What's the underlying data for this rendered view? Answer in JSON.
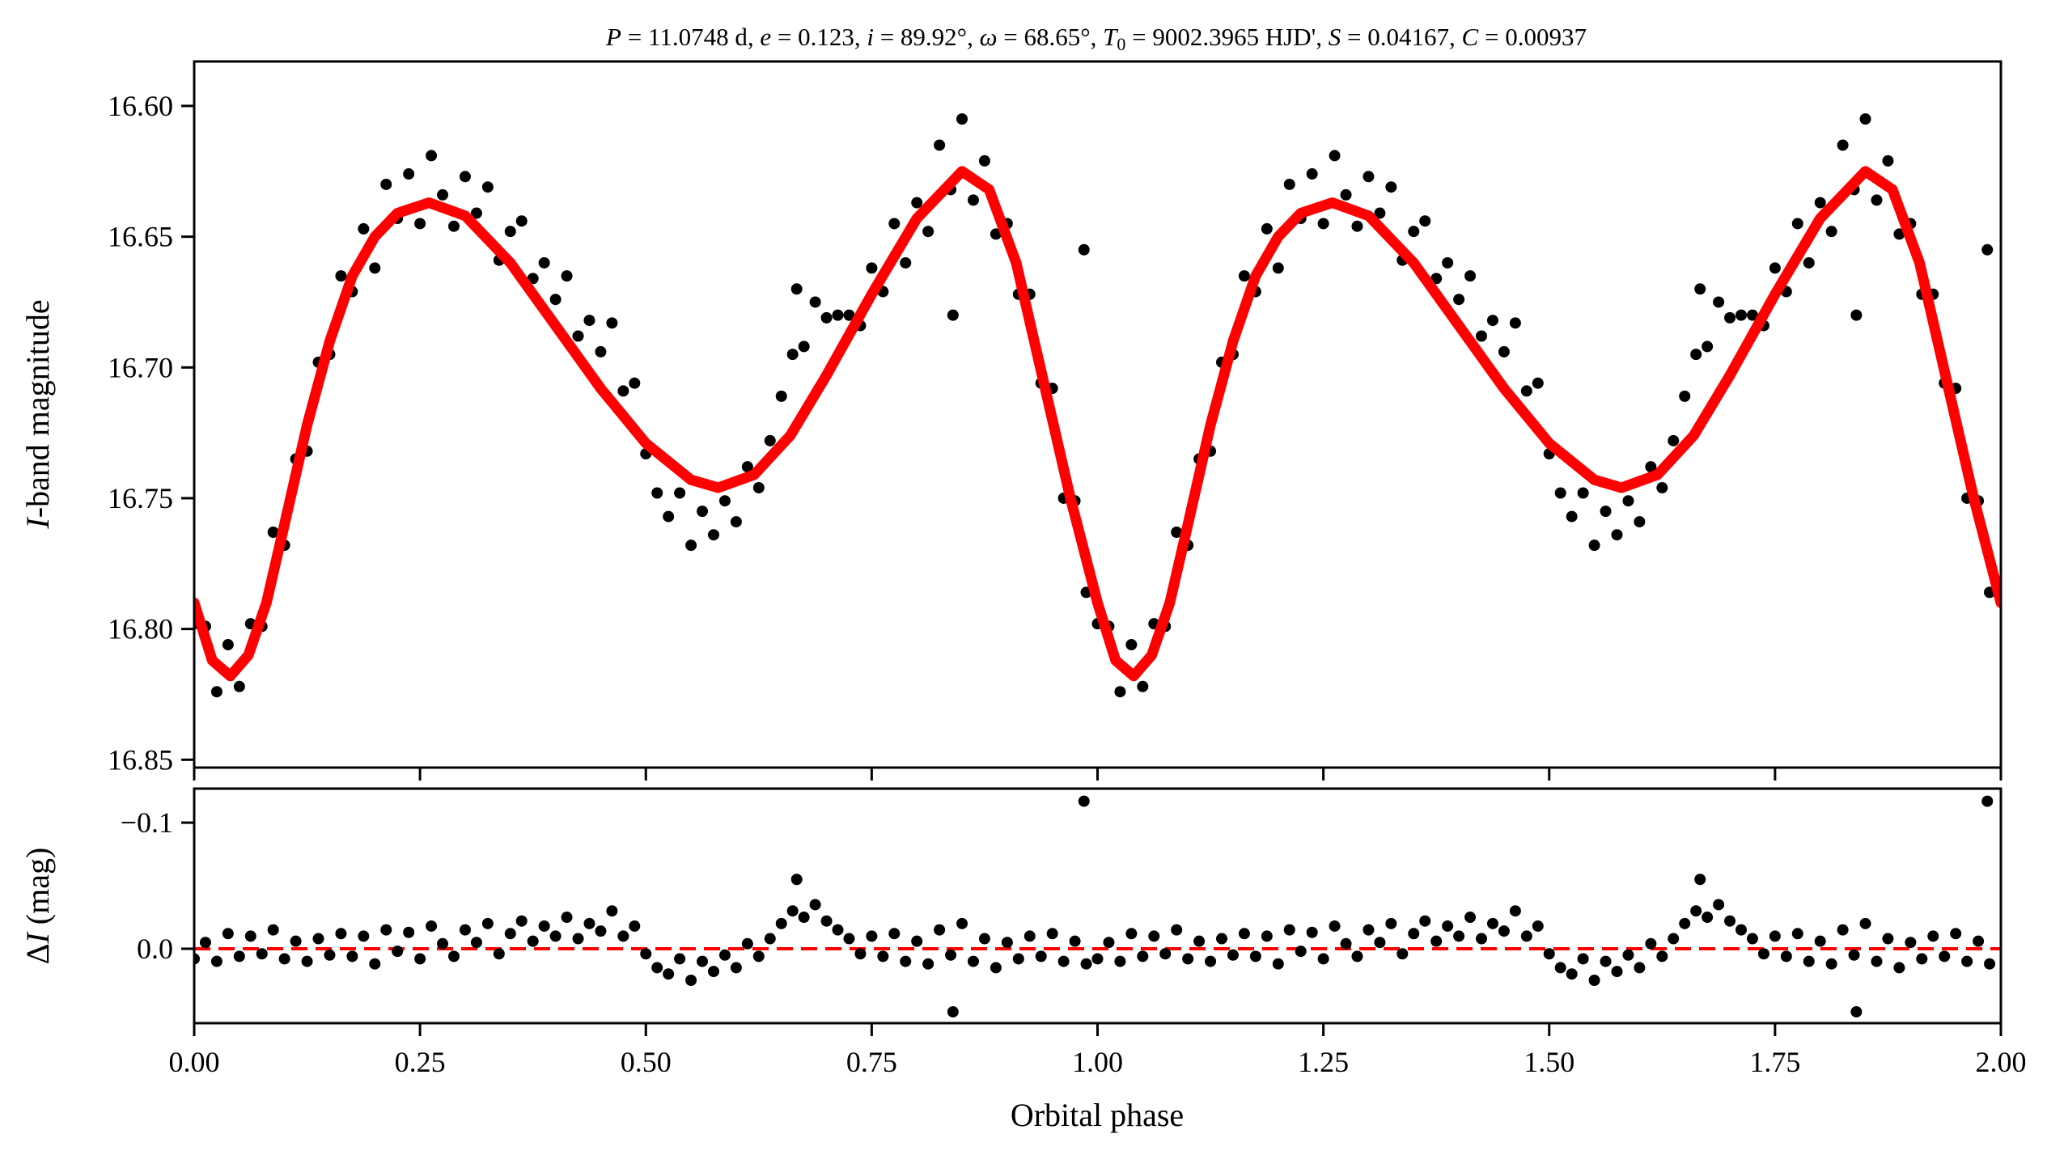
{
  "chart_data": [
    {
      "type": "scatter",
      "panel": "upper",
      "title": "P = 11.0748 d, e = 0.123, i = 89.92°, ω = 68.65°, T0 = 9002.3965 HJD', S = 0.04167, C = 0.00937",
      "title_parts": {
        "P": "11.0748 d",
        "e": "0.123",
        "i": "89.92°",
        "omega": "68.65°",
        "T0": "9002.3965 HJD'",
        "S": "0.04167",
        "C": "0.00937"
      },
      "xlabel": "",
      "ylabel": "I-band magnitude",
      "ylabel_italic_part": "I",
      "ylabel_rest": "-band magnitude",
      "xlim": [
        0,
        2
      ],
      "ylim": [
        16.853,
        16.583
      ],
      "y_inverted": true,
      "yticks": [
        "16.60",
        "16.65",
        "16.70",
        "16.75",
        "16.80",
        "16.85"
      ],
      "ytick_values": [
        16.6,
        16.65,
        16.7,
        16.75,
        16.8,
        16.85
      ],
      "xtick_values": [
        0,
        0.25,
        0.5,
        0.75,
        1.0,
        1.25,
        1.5,
        1.75,
        2.0
      ],
      "phases_shown": "data repeated for phase 0–1 and 1–2",
      "points_color": "#000000",
      "model_color": "#ff0000",
      "model_curve": [
        [
          0.0,
          16.79
        ],
        [
          0.02,
          16.812
        ],
        [
          0.04,
          16.818
        ],
        [
          0.06,
          16.81
        ],
        [
          0.08,
          16.79
        ],
        [
          0.1,
          16.76
        ],
        [
          0.125,
          16.722
        ],
        [
          0.15,
          16.69
        ],
        [
          0.175,
          16.665
        ],
        [
          0.2,
          16.65
        ],
        [
          0.225,
          16.641
        ],
        [
          0.26,
          16.637
        ],
        [
          0.3,
          16.642
        ],
        [
          0.35,
          16.66
        ],
        [
          0.4,
          16.684
        ],
        [
          0.45,
          16.708
        ],
        [
          0.5,
          16.729
        ],
        [
          0.55,
          16.743
        ],
        [
          0.58,
          16.746
        ],
        [
          0.62,
          16.741
        ],
        [
          0.66,
          16.726
        ],
        [
          0.7,
          16.703
        ],
        [
          0.75,
          16.672
        ],
        [
          0.8,
          16.643
        ],
        [
          0.85,
          16.625
        ],
        [
          0.88,
          16.632
        ],
        [
          0.91,
          16.66
        ],
        [
          0.94,
          16.705
        ],
        [
          0.97,
          16.75
        ],
        [
          1.0,
          16.79
        ]
      ],
      "points": [
        [
          0.0,
          16.798
        ],
        [
          0.0125,
          16.799
        ],
        [
          0.025,
          16.824
        ],
        [
          0.0375,
          16.806
        ],
        [
          0.05,
          16.822
        ],
        [
          0.0625,
          16.798
        ],
        [
          0.075,
          16.799
        ],
        [
          0.0875,
          16.763
        ],
        [
          0.1,
          16.768
        ],
        [
          0.1125,
          16.735
        ],
        [
          0.125,
          16.732
        ],
        [
          0.1375,
          16.698
        ],
        [
          0.15,
          16.695
        ],
        [
          0.1625,
          16.665
        ],
        [
          0.175,
          16.671
        ],
        [
          0.1875,
          16.647
        ],
        [
          0.2,
          16.662
        ],
        [
          0.2125,
          16.63
        ],
        [
          0.225,
          16.643
        ],
        [
          0.2375,
          16.626
        ],
        [
          0.25,
          16.645
        ],
        [
          0.2625,
          16.619
        ],
        [
          0.275,
          16.634
        ],
        [
          0.2875,
          16.646
        ],
        [
          0.3,
          16.627
        ],
        [
          0.3125,
          16.641
        ],
        [
          0.325,
          16.631
        ],
        [
          0.3375,
          16.659
        ],
        [
          0.35,
          16.648
        ],
        [
          0.3625,
          16.644
        ],
        [
          0.375,
          16.666
        ],
        [
          0.3875,
          16.66
        ],
        [
          0.4,
          16.674
        ],
        [
          0.4125,
          16.665
        ],
        [
          0.425,
          16.688
        ],
        [
          0.4375,
          16.682
        ],
        [
          0.45,
          16.694
        ],
        [
          0.4625,
          16.683
        ],
        [
          0.475,
          16.709
        ],
        [
          0.4875,
          16.706
        ],
        [
          0.5,
          16.733
        ],
        [
          0.5125,
          16.748
        ],
        [
          0.525,
          16.757
        ],
        [
          0.5375,
          16.748
        ],
        [
          0.55,
          16.768
        ],
        [
          0.5625,
          16.755
        ],
        [
          0.575,
          16.764
        ],
        [
          0.5875,
          16.751
        ],
        [
          0.6,
          16.759
        ],
        [
          0.6125,
          16.738
        ],
        [
          0.625,
          16.746
        ],
        [
          0.6375,
          16.728
        ],
        [
          0.65,
          16.711
        ],
        [
          0.6625,
          16.695
        ],
        [
          0.675,
          16.692
        ],
        [
          0.6875,
          16.675
        ],
        [
          0.7,
          16.681
        ],
        [
          0.7125,
          16.68
        ],
        [
          0.725,
          16.68
        ],
        [
          0.7375,
          16.684
        ],
        [
          0.75,
          16.662
        ],
        [
          0.7625,
          16.671
        ],
        [
          0.775,
          16.645
        ],
        [
          0.7875,
          16.66
        ],
        [
          0.8,
          16.637
        ],
        [
          0.8125,
          16.648
        ],
        [
          0.825,
          16.615
        ],
        [
          0.8375,
          16.632
        ],
        [
          0.85,
          16.605
        ],
        [
          0.8625,
          16.636
        ],
        [
          0.875,
          16.621
        ],
        [
          0.8875,
          16.649
        ],
        [
          0.9,
          16.645
        ],
        [
          0.9125,
          16.672
        ],
        [
          0.925,
          16.672
        ],
        [
          0.9375,
          16.706
        ],
        [
          0.95,
          16.708
        ],
        [
          0.9625,
          16.75
        ],
        [
          0.975,
          16.751
        ],
        [
          0.9875,
          16.786
        ],
        [
          0.985,
          16.655
        ],
        [
          0.667,
          16.67
        ],
        [
          0.84,
          16.68
        ]
      ]
    },
    {
      "type": "scatter",
      "panel": "lower",
      "xlabel": "Orbital phase",
      "ylabel": "ΔI (mag)",
      "ylabel_delta": "Δ",
      "ylabel_italic_part": "I",
      "ylabel_rest": " (mag)",
      "xlim": [
        0,
        2
      ],
      "ylim": [
        0.059,
        -0.127
      ],
      "y_inverted": true,
      "xticks": [
        "0.00",
        "0.25",
        "0.50",
        "0.75",
        "1.00",
        "1.25",
        "1.50",
        "1.75",
        "2.00"
      ],
      "xtick_values": [
        0,
        0.25,
        0.5,
        0.75,
        1.0,
        1.25,
        1.5,
        1.75,
        2.0
      ],
      "yticks": [
        "−0.1",
        "0.0"
      ],
      "ytick_values": [
        -0.1,
        0.0
      ],
      "zero_line": {
        "value": 0.0,
        "style": "dashed",
        "color": "#ff0000"
      },
      "points_color": "#000000",
      "points": [
        [
          0.0,
          0.008
        ],
        [
          0.0125,
          -0.005
        ],
        [
          0.025,
          0.01
        ],
        [
          0.0375,
          -0.012
        ],
        [
          0.05,
          0.006
        ],
        [
          0.0625,
          -0.01
        ],
        [
          0.075,
          0.004
        ],
        [
          0.0875,
          -0.015
        ],
        [
          0.1,
          0.008
        ],
        [
          0.1125,
          -0.006
        ],
        [
          0.125,
          0.01
        ],
        [
          0.1375,
          -0.008
        ],
        [
          0.15,
          0.005
        ],
        [
          0.1625,
          -0.012
        ],
        [
          0.175,
          0.006
        ],
        [
          0.1875,
          -0.01
        ],
        [
          0.2,
          0.012
        ],
        [
          0.2125,
          -0.015
        ],
        [
          0.225,
          0.002
        ],
        [
          0.2375,
          -0.013
        ],
        [
          0.25,
          0.008
        ],
        [
          0.2625,
          -0.018
        ],
        [
          0.275,
          -0.004
        ],
        [
          0.2875,
          0.006
        ],
        [
          0.3,
          -0.015
        ],
        [
          0.3125,
          -0.005
        ],
        [
          0.325,
          -0.02
        ],
        [
          0.3375,
          0.004
        ],
        [
          0.35,
          -0.012
        ],
        [
          0.3625,
          -0.022
        ],
        [
          0.375,
          -0.006
        ],
        [
          0.3875,
          -0.018
        ],
        [
          0.4,
          -0.01
        ],
        [
          0.4125,
          -0.025
        ],
        [
          0.425,
          -0.008
        ],
        [
          0.4375,
          -0.02
        ],
        [
          0.45,
          -0.014
        ],
        [
          0.4625,
          -0.03
        ],
        [
          0.475,
          -0.01
        ],
        [
          0.4875,
          -0.018
        ],
        [
          0.5,
          0.004
        ],
        [
          0.5125,
          0.015
        ],
        [
          0.525,
          0.02
        ],
        [
          0.5375,
          0.008
        ],
        [
          0.55,
          0.025
        ],
        [
          0.5625,
          0.01
        ],
        [
          0.575,
          0.018
        ],
        [
          0.5875,
          0.005
        ],
        [
          0.6,
          0.015
        ],
        [
          0.6125,
          -0.004
        ],
        [
          0.625,
          0.006
        ],
        [
          0.6375,
          -0.008
        ],
        [
          0.65,
          -0.02
        ],
        [
          0.6625,
          -0.03
        ],
        [
          0.675,
          -0.025
        ],
        [
          0.6875,
          -0.035
        ],
        [
          0.7,
          -0.022
        ],
        [
          0.7125,
          -0.015
        ],
        [
          0.725,
          -0.008
        ],
        [
          0.7375,
          0.004
        ],
        [
          0.75,
          -0.01
        ],
        [
          0.7625,
          0.006
        ],
        [
          0.775,
          -0.012
        ],
        [
          0.7875,
          0.01
        ],
        [
          0.8,
          -0.006
        ],
        [
          0.8125,
          0.012
        ],
        [
          0.825,
          -0.015
        ],
        [
          0.8375,
          0.005
        ],
        [
          0.85,
          -0.02
        ],
        [
          0.8625,
          0.01
        ],
        [
          0.875,
          -0.008
        ],
        [
          0.8875,
          0.015
        ],
        [
          0.9,
          -0.005
        ],
        [
          0.9125,
          0.008
        ],
        [
          0.925,
          -0.01
        ],
        [
          0.9375,
          0.006
        ],
        [
          0.95,
          -0.012
        ],
        [
          0.9625,
          0.01
        ],
        [
          0.975,
          -0.006
        ],
        [
          0.9875,
          0.012
        ],
        [
          0.985,
          -0.117
        ],
        [
          0.667,
          -0.055
        ],
        [
          0.84,
          0.05
        ]
      ]
    }
  ]
}
